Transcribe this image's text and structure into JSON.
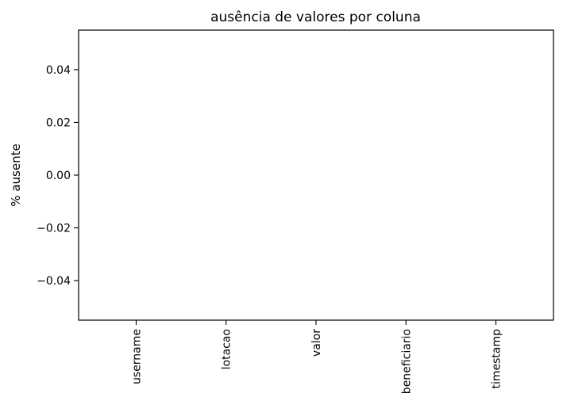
{
  "chart_data": {
    "type": "bar",
    "title": "ausência de valores por coluna",
    "xlabel": "",
    "ylabel": "% ausente",
    "categories": [
      "username",
      "lotacao",
      "valor",
      "beneficiario",
      "timestamp"
    ],
    "values": [
      0,
      0,
      0,
      0,
      0
    ],
    "ylim": [
      -0.055,
      0.055
    ],
    "yticks": [
      -0.04,
      -0.02,
      0.0,
      0.02,
      0.04
    ],
    "ytick_labels": [
      "−0.04",
      "−0.02",
      "0.00",
      "0.02",
      "0.04"
    ],
    "xtick_rotation": "vertical",
    "grid": false,
    "legend": "none",
    "bar_color": "#1f77b4"
  }
}
